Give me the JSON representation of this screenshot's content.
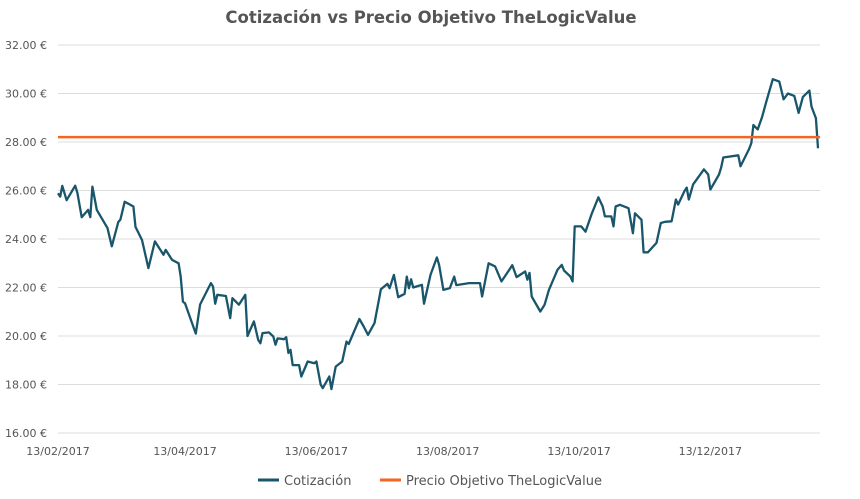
{
  "chart_data": {
    "type": "line",
    "title": "Cotización vs Precio Objetivo TheLogicValue",
    "xlabel": "",
    "ylabel": "",
    "ylim": [
      16,
      32
    ],
    "y_ticks": [
      "16.00 €",
      "18.00 €",
      "20.00 €",
      "22.00 €",
      "24.00 €",
      "26.00 €",
      "28.00 €",
      "30.00 €",
      "32.00 €"
    ],
    "y_tick_values": [
      16,
      18,
      20,
      22,
      24,
      26,
      28,
      30,
      32
    ],
    "x_ticks": [
      "13/02/2017",
      "13/04/2017",
      "13/06/2017",
      "13/08/2017",
      "13/10/2017",
      "13/12/2017"
    ],
    "xlim": [
      "13/02/2017",
      "01/02/2018"
    ],
    "grid": true,
    "legend_position": "bottom",
    "series": [
      {
        "name": "Cotización",
        "color": "#1a566b",
        "points": [
          [
            "13/02/2017",
            25.89
          ],
          [
            "14/02/2017",
            25.75
          ],
          [
            "15/02/2017",
            26.19
          ],
          [
            "17/02/2017",
            25.6
          ],
          [
            "21/02/2017",
            26.2
          ],
          [
            "22/02/2017",
            25.9
          ],
          [
            "24/02/2017",
            24.9
          ],
          [
            "27/02/2017",
            25.2
          ],
          [
            "28/02/2017",
            24.9
          ],
          [
            "01/03/2017",
            26.16
          ],
          [
            "03/03/2017",
            25.2
          ],
          [
            "08/03/2017",
            24.45
          ],
          [
            "10/03/2017",
            23.7
          ],
          [
            "13/03/2017",
            24.7
          ],
          [
            "14/03/2017",
            24.8
          ],
          [
            "16/03/2017",
            25.54
          ],
          [
            "20/03/2017",
            25.34
          ],
          [
            "21/03/2017",
            24.5
          ],
          [
            "24/03/2017",
            23.96
          ],
          [
            "27/03/2017",
            22.8
          ],
          [
            "30/03/2017",
            23.9
          ],
          [
            "03/04/2017",
            23.35
          ],
          [
            "04/04/2017",
            23.55
          ],
          [
            "07/04/2017",
            23.14
          ],
          [
            "10/04/2017",
            23.0
          ],
          [
            "11/04/2017",
            22.45
          ],
          [
            "12/04/2017",
            21.42
          ],
          [
            "13/04/2017",
            21.35
          ],
          [
            "18/04/2017",
            20.1
          ],
          [
            "20/04/2017",
            21.3
          ],
          [
            "25/04/2017",
            22.18
          ],
          [
            "26/04/2017",
            22.04
          ],
          [
            "27/04/2017",
            21.33
          ],
          [
            "28/04/2017",
            21.7
          ],
          [
            "02/05/2017",
            21.65
          ],
          [
            "04/05/2017",
            20.74
          ],
          [
            "05/05/2017",
            21.56
          ],
          [
            "08/05/2017",
            21.29
          ],
          [
            "11/05/2017",
            21.7
          ],
          [
            "12/05/2017",
            20.0
          ],
          [
            "15/05/2017",
            20.6
          ],
          [
            "17/05/2017",
            19.84
          ],
          [
            "18/05/2017",
            19.7
          ],
          [
            "19/05/2017",
            20.12
          ],
          [
            "22/05/2017",
            20.15
          ],
          [
            "24/05/2017",
            19.98
          ],
          [
            "25/05/2017",
            19.64
          ],
          [
            "26/05/2017",
            19.9
          ],
          [
            "29/05/2017",
            19.87
          ],
          [
            "30/05/2017",
            19.95
          ],
          [
            "31/05/2017",
            19.3
          ],
          [
            "01/06/2017",
            19.43
          ],
          [
            "02/06/2017",
            18.8
          ],
          [
            "05/06/2017",
            18.8
          ],
          [
            "06/06/2017",
            18.33
          ],
          [
            "09/06/2017",
            18.95
          ],
          [
            "12/06/2017",
            18.88
          ],
          [
            "13/06/2017",
            18.95
          ],
          [
            "15/06/2017",
            17.99
          ],
          [
            "16/06/2017",
            17.85
          ],
          [
            "19/06/2017",
            18.33
          ],
          [
            "20/06/2017",
            17.81
          ],
          [
            "22/06/2017",
            18.74
          ],
          [
            "25/06/2017",
            18.95
          ],
          [
            "27/06/2017",
            19.77
          ],
          [
            "28/06/2017",
            19.67
          ],
          [
            "03/07/2017",
            20.7
          ],
          [
            "05/07/2017",
            20.39
          ],
          [
            "07/07/2017",
            20.05
          ],
          [
            "10/07/2017",
            20.53
          ],
          [
            "13/07/2017",
            21.93
          ],
          [
            "16/07/2017",
            22.15
          ],
          [
            "17/07/2017",
            21.97
          ],
          [
            "19/07/2017",
            22.52
          ],
          [
            "21/07/2017",
            21.6
          ],
          [
            "24/07/2017",
            21.74
          ],
          [
            "25/07/2017",
            22.45
          ],
          [
            "26/07/2017",
            21.97
          ],
          [
            "27/07/2017",
            22.34
          ],
          [
            "28/07/2017",
            22.0
          ],
          [
            "01/08/2017",
            22.11
          ],
          [
            "02/08/2017",
            21.33
          ],
          [
            "05/08/2017",
            22.52
          ],
          [
            "08/08/2017",
            23.24
          ],
          [
            "09/08/2017",
            22.93
          ],
          [
            "11/08/2017",
            21.9
          ],
          [
            "14/08/2017",
            21.97
          ],
          [
            "16/08/2017",
            22.45
          ],
          [
            "17/08/2017",
            22.1
          ],
          [
            "23/08/2017",
            22.18
          ],
          [
            "28/08/2017",
            22.18
          ],
          [
            "29/08/2017",
            21.63
          ],
          [
            "01/09/2017",
            23.0
          ],
          [
            "04/09/2017",
            22.87
          ],
          [
            "06/09/2017",
            22.45
          ],
          [
            "07/09/2017",
            22.25
          ],
          [
            "12/09/2017",
            22.92
          ],
          [
            "14/09/2017",
            22.43
          ],
          [
            "18/09/2017",
            22.66
          ],
          [
            "19/09/2017",
            22.32
          ],
          [
            "20/09/2017",
            22.6
          ],
          [
            "21/09/2017",
            21.63
          ],
          [
            "25/09/2017",
            21.01
          ],
          [
            "27/09/2017",
            21.29
          ],
          [
            "29/09/2017",
            21.9
          ],
          [
            "03/10/2017",
            22.73
          ],
          [
            "05/10/2017",
            22.93
          ],
          [
            "06/10/2017",
            22.7
          ],
          [
            "09/10/2017",
            22.45
          ],
          [
            "10/10/2017",
            22.25
          ],
          [
            "11/10/2017",
            24.52
          ],
          [
            "14/10/2017",
            24.52
          ],
          [
            "16/10/2017",
            24.3
          ],
          [
            "19/10/2017",
            25.06
          ],
          [
            "22/10/2017",
            25.72
          ],
          [
            "24/10/2017",
            25.34
          ],
          [
            "25/10/2017",
            24.93
          ],
          [
            "28/10/2017",
            24.93
          ],
          [
            "29/10/2017",
            24.52
          ],
          [
            "30/10/2017",
            25.34
          ],
          [
            "01/11/2017",
            25.41
          ],
          [
            "05/11/2017",
            25.27
          ],
          [
            "07/11/2017",
            24.24
          ],
          [
            "08/11/2017",
            25.06
          ],
          [
            "11/11/2017",
            24.79
          ],
          [
            "12/11/2017",
            23.45
          ],
          [
            "14/11/2017",
            23.45
          ],
          [
            "18/11/2017",
            23.84
          ],
          [
            "20/11/2017",
            24.66
          ],
          [
            "22/11/2017",
            24.71
          ],
          [
            "25/11/2017",
            24.73
          ],
          [
            "27/11/2017",
            25.63
          ],
          [
            "28/11/2017",
            25.42
          ],
          [
            "01/12/2017",
            25.98
          ],
          [
            "02/12/2017",
            26.12
          ],
          [
            "03/12/2017",
            25.63
          ],
          [
            "05/12/2017",
            26.25
          ],
          [
            "10/12/2017",
            26.87
          ],
          [
            "12/12/2017",
            26.66
          ],
          [
            "13/12/2017",
            26.04
          ],
          [
            "17/12/2017",
            26.66
          ],
          [
            "18/12/2017",
            26.94
          ],
          [
            "19/12/2017",
            27.36
          ],
          [
            "26/12/2017",
            27.45
          ],
          [
            "27/12/2017",
            27.0
          ],
          [
            "31/12/2017",
            27.71
          ],
          [
            "01/01/2018",
            27.95
          ],
          [
            "02/01/2018",
            28.7
          ],
          [
            "04/01/2018",
            28.52
          ],
          [
            "06/01/2018",
            29.02
          ],
          [
            "08/01/2018",
            29.66
          ],
          [
            "11/01/2018",
            30.59
          ],
          [
            "14/01/2018",
            30.49
          ],
          [
            "16/01/2018",
            29.76
          ],
          [
            "18/01/2018",
            30.0
          ],
          [
            "21/01/2018",
            29.9
          ],
          [
            "23/01/2018",
            29.2
          ],
          [
            "25/01/2018",
            29.86
          ],
          [
            "28/01/2018",
            30.12
          ],
          [
            "29/01/2018",
            29.46
          ],
          [
            "31/01/2018",
            28.98
          ],
          [
            "01/02/2018",
            27.74
          ]
        ]
      },
      {
        "name": "Precio Objetivo TheLogicValue",
        "color": "#f26522",
        "value": 28.2
      }
    ]
  }
}
